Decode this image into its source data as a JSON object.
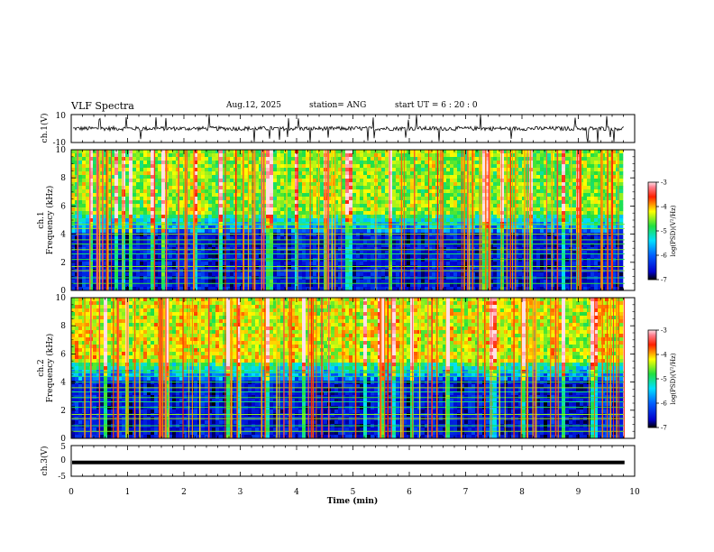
{
  "header": {
    "title": "VLF Spectra",
    "date": "Aug.12, 2025",
    "station": "station= ANG",
    "start": "start  UT =   6 : 20 : 0"
  },
  "chart_data": [
    {
      "type": "line",
      "panel": "ch1-waveform",
      "ylabel": "ch.1(V)",
      "ylim": [
        -10,
        10
      ],
      "yticks": [
        "10",
        "-10"
      ],
      "xlim": [
        0,
        10
      ],
      "baseline": 0,
      "color": "#000000"
    },
    {
      "type": "heatmap",
      "panel": "ch1-spectrogram",
      "ylabel_line1": "ch.1",
      "ylabel_line2": "Frequency (kHz)",
      "ylim": [
        0,
        10
      ],
      "yticks": [
        "0",
        "2",
        "4",
        "6",
        "8",
        "10"
      ],
      "xlim": [
        0,
        10
      ],
      "colorbar": {
        "label": "log(PSD)(V²/Hz)",
        "ticks": [
          "-3",
          "-4",
          "-5",
          "-6",
          "-7"
        ],
        "range": [
          -7,
          -3
        ]
      }
    },
    {
      "type": "heatmap",
      "panel": "ch2-spectrogram",
      "ylabel_line1": "ch.2",
      "ylabel_line2": "Frequency (kHz)",
      "ylim": [
        0,
        10
      ],
      "yticks": [
        "0",
        "2",
        "4",
        "6",
        "8",
        "10"
      ],
      "xlim": [
        0,
        10
      ],
      "colorbar": {
        "label": "log(PSD)(V²/Hz)",
        "ticks": [
          "-3",
          "-4",
          "-5",
          "-6",
          "-7"
        ],
        "range": [
          -7,
          -3
        ]
      }
    },
    {
      "type": "line",
      "panel": "ch3-waveform",
      "ylabel": "ch.3(V)",
      "ylim": [
        -5,
        5
      ],
      "yticks": [
        "5",
        "0",
        "-5"
      ],
      "xlim": [
        0,
        10
      ],
      "baseline": -0.5,
      "color": "#000000"
    }
  ],
  "xaxis": {
    "label": "Time (min)",
    "ticks": [
      "0",
      "1",
      "2",
      "3",
      "4",
      "5",
      "6",
      "7",
      "8",
      "9",
      "10"
    ],
    "data_end": 9.82
  }
}
